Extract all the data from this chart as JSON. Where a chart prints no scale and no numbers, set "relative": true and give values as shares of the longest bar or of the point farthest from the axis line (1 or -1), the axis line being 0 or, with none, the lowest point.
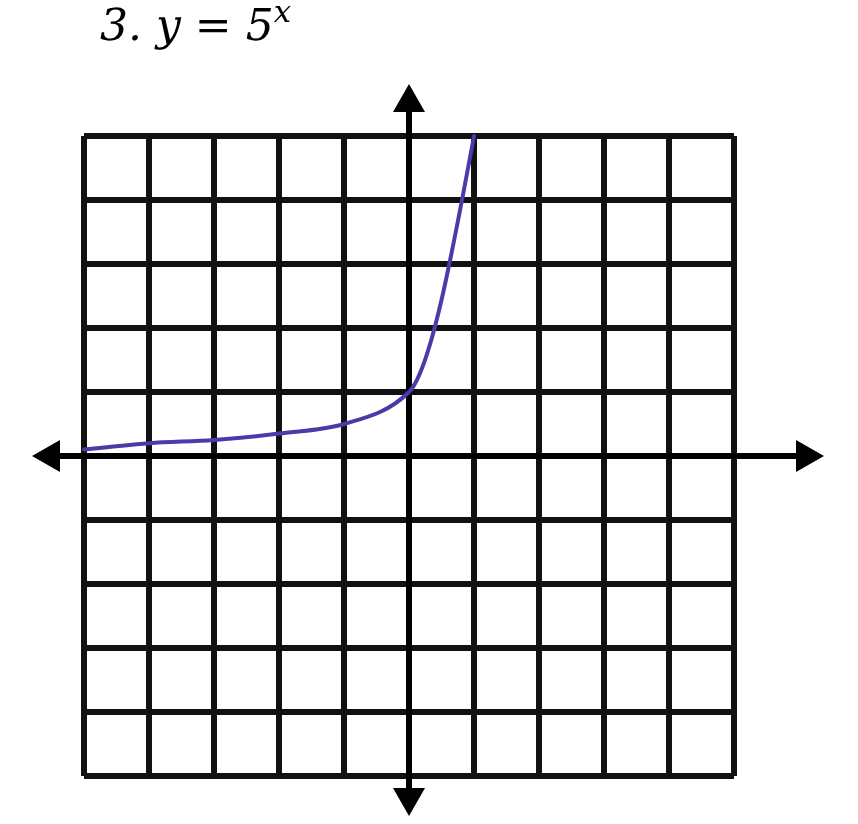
{
  "chart_data": {
    "type": "line",
    "title": "3. y = 5$^{x}$",
    "relative": true,
    "grid": true,
    "categories": [
      null,
      null,
      null,
      null,
      null,
      null,
      null,
      null,
      null,
      null,
      null
    ],
    "series": [
      {
        "color": "#4b3aa8",
        "values": [
          0.02,
          0.04,
          0.05,
          0.07,
          0.1,
          0.2,
          1,
          null,
          null,
          null,
          null
        ]
      }
    ]
  }
}
